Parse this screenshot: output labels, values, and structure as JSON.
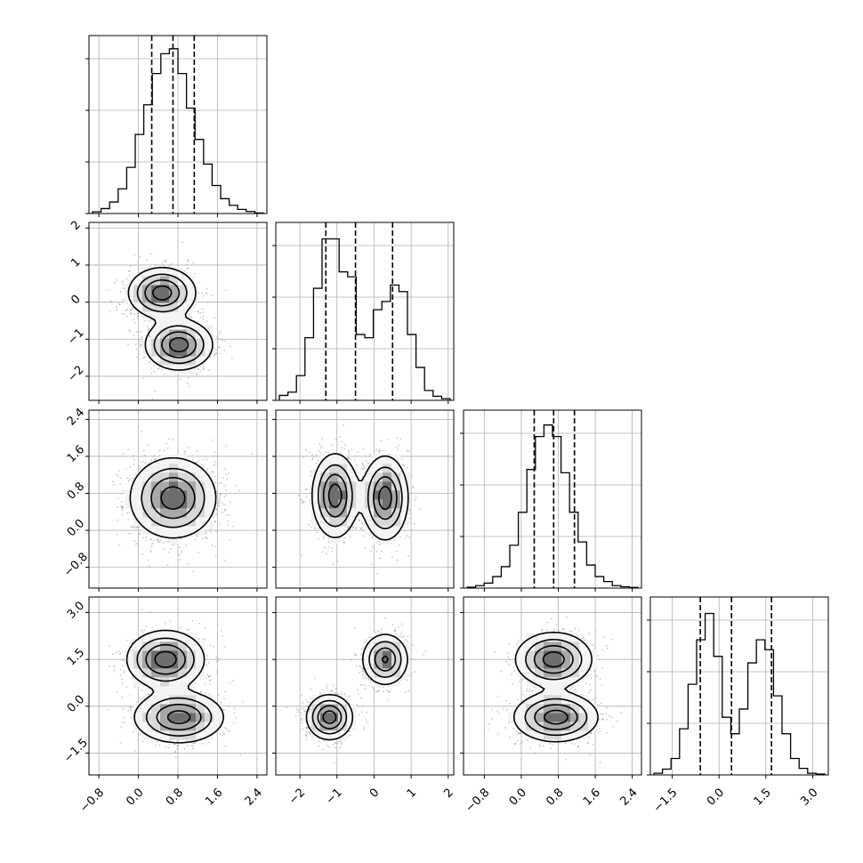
{
  "chart_data": {
    "type": "corner",
    "title": "",
    "grid": true,
    "n_params": 4,
    "params": [
      {
        "index": 0,
        "label": "",
        "range": [
          -1.0,
          2.6
        ],
        "ticks": [
          -0.8,
          0.0,
          0.8,
          1.6,
          2.4
        ],
        "tick_labels": [
          "−0.8",
          "0.0",
          "0.8",
          "1.6",
          "2.4"
        ],
        "quantiles": [
          0.27,
          0.7,
          1.13
        ],
        "hist": [
          0.01,
          0.03,
          0.07,
          0.15,
          0.28,
          0.48,
          0.66,
          0.85,
          0.97,
          1.0,
          0.85,
          0.64,
          0.45,
          0.3,
          0.17,
          0.09,
          0.05,
          0.025,
          0.012,
          0.003
        ]
      },
      {
        "index": 1,
        "label": "",
        "range": [
          -2.65,
          2.15
        ],
        "ticks": [
          -2,
          -1,
          0,
          1,
          2
        ],
        "tick_labels": [
          "−2",
          "−1",
          "0",
          "1",
          "2"
        ],
        "quantiles": [
          -1.3,
          -0.5,
          0.5
        ],
        "hist": [
          0.03,
          0.05,
          0.15,
          0.38,
          0.68,
          0.98,
          0.98,
          0.78,
          0.75,
          0.4,
          0.38,
          0.55,
          0.6,
          0.7,
          0.66,
          0.4,
          0.2,
          0.06,
          0.025,
          0.01
        ]
      },
      {
        "index": 2,
        "label": "",
        "range": [
          -1.25,
          2.6
        ],
        "ticks": [
          -0.8,
          0.0,
          0.8,
          1.6,
          2.4
        ],
        "tick_labels": [
          "−0.8",
          "0.0",
          "0.8",
          "1.6",
          "2.4"
        ],
        "quantiles": [
          0.28,
          0.7,
          1.15
        ],
        "hist": [
          0.005,
          0.015,
          0.03,
          0.07,
          0.13,
          0.26,
          0.46,
          0.72,
          0.92,
          0.99,
          0.92,
          0.7,
          0.46,
          0.28,
          0.14,
          0.07,
          0.04,
          0.015,
          0.008,
          0.004
        ]
      },
      {
        "index": 3,
        "label": "",
        "range": [
          -2.2,
          3.5
        ],
        "ticks": [
          -1.5,
          0.0,
          1.5,
          3.0
        ],
        "tick_labels": [
          "−1.5",
          "0.0",
          "1.5",
          "3.0"
        ],
        "quantiles": [
          -0.6,
          0.4,
          1.68
        ],
        "hist": [
          0.01,
          0.035,
          0.1,
          0.28,
          0.55,
          0.82,
          0.98,
          0.72,
          0.35,
          0.25,
          0.4,
          0.68,
          0.82,
          0.76,
          0.48,
          0.25,
          0.1,
          0.04,
          0.01,
          0.005
        ]
      }
    ],
    "pairs": [
      {
        "x": 0,
        "y": 1,
        "modes": [
          {
            "mx": 0.48,
            "my": 0.25,
            "sx": 0.33,
            "sy": 0.33,
            "w": 0.5
          },
          {
            "mx": 0.82,
            "my": -1.15,
            "sx": 0.33,
            "sy": 0.33,
            "w": 0.5
          }
        ]
      },
      {
        "x": 0,
        "y": 2,
        "modes": [
          {
            "mx": 0.7,
            "my": 0.7,
            "sx": 0.42,
            "sy": 0.42,
            "w": 1.0
          }
        ]
      },
      {
        "x": 1,
        "y": 2,
        "modes": [
          {
            "mx": -1.05,
            "my": 0.75,
            "sx": 0.3,
            "sy": 0.44,
            "w": 0.5
          },
          {
            "mx": 0.3,
            "my": 0.7,
            "sx": 0.3,
            "sy": 0.44,
            "w": 0.5
          }
        ]
      },
      {
        "x": 0,
        "y": 3,
        "modes": [
          {
            "mx": 0.55,
            "my": 1.5,
            "sx": 0.38,
            "sy": 0.45,
            "w": 0.5
          },
          {
            "mx": 0.82,
            "my": -0.35,
            "sx": 0.44,
            "sy": 0.4,
            "w": 0.5
          }
        ]
      },
      {
        "x": 1,
        "y": 3,
        "modes": [
          {
            "mx": -1.2,
            "my": -0.35,
            "sx": 0.3,
            "sy": 0.35,
            "w": 0.5
          },
          {
            "mx": 0.3,
            "my": 1.5,
            "sx": 0.3,
            "sy": 0.4,
            "w": 0.5
          }
        ]
      },
      {
        "x": 2,
        "y": 3,
        "modes": [
          {
            "mx": 0.7,
            "my": 1.5,
            "sx": 0.4,
            "sy": 0.42,
            "w": 0.5
          },
          {
            "mx": 0.75,
            "my": -0.35,
            "sx": 0.44,
            "sy": 0.38,
            "w": 0.5
          }
        ]
      }
    ]
  }
}
